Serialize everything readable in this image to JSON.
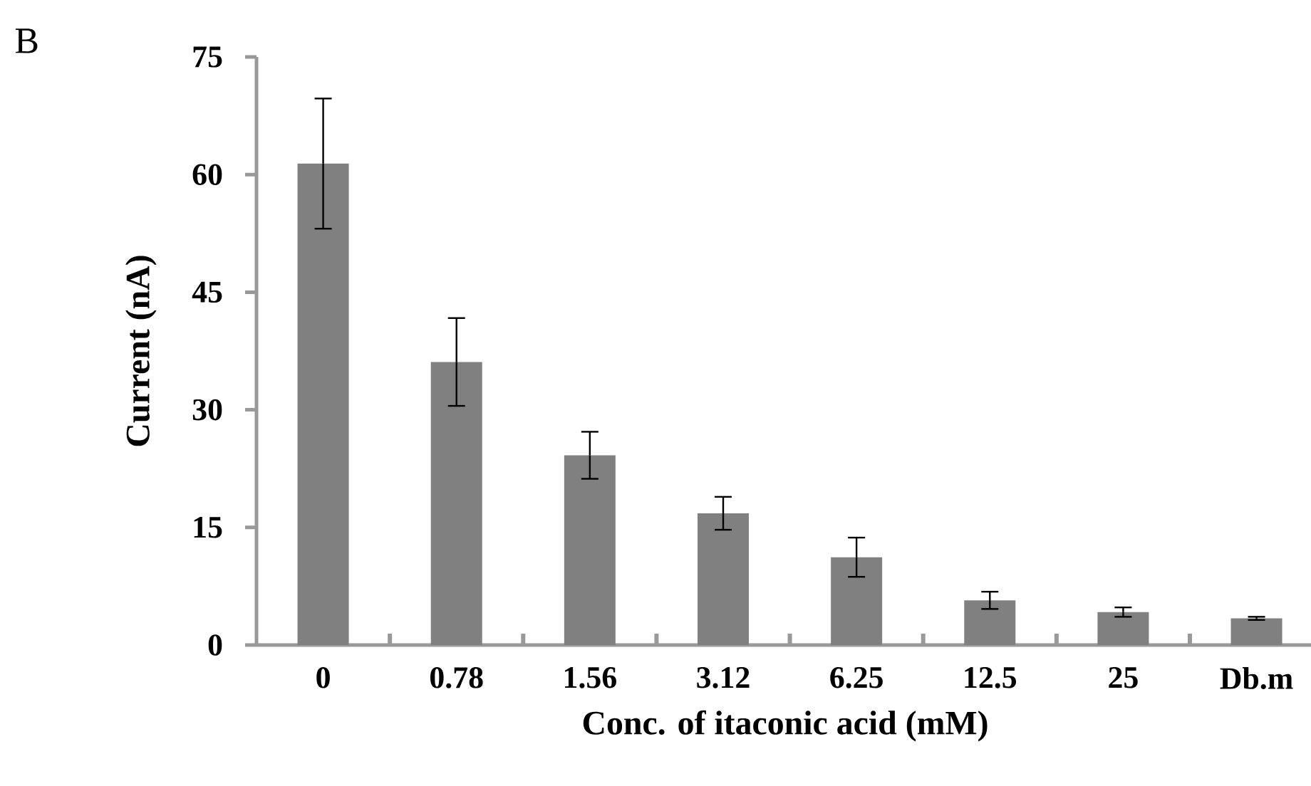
{
  "chart_data": {
    "type": "bar",
    "categories": [
      "0",
      "0.78",
      "1.56",
      "3.12",
      "6.25",
      "12.5",
      "25",
      "Db.m"
    ],
    "values": [
      61.4,
      36.1,
      24.2,
      16.8,
      11.2,
      5.7,
      4.2,
      3.4
    ],
    "errors": [
      8.3,
      5.6,
      3.0,
      2.1,
      2.5,
      1.1,
      0.6,
      0.2
    ],
    "color": "#808080",
    "ylim": [
      0,
      75
    ],
    "yticks": [
      0,
      15,
      30,
      45,
      60,
      75
    ],
    "xlabel": "Conc. of itaconic acid (mM)",
    "ylabel": "Current (nA)",
    "annotations": [
      "B"
    ]
  }
}
